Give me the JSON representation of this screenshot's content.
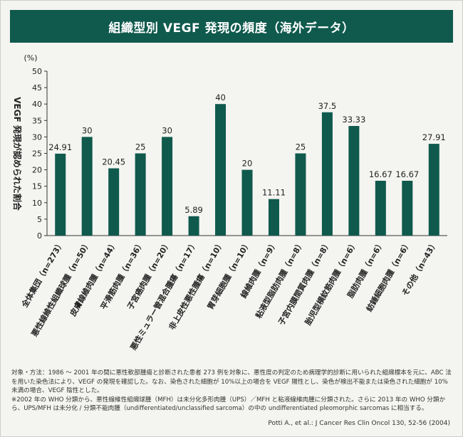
{
  "title": "組織型別 VEGF 発現の頻度（海外データ）",
  "chart_data": {
    "type": "bar",
    "title": "組織型別 VEGF 発現の頻度（海外データ）",
    "ylabel": "VEGF 発現が認められた割合",
    "yunit": "(%)",
    "ylim": [
      0,
      50
    ],
    "ytick_step": 5,
    "grid": false,
    "bar_color": "#0f5a4d",
    "categories": [
      "全体集団（n=273）",
      "悪性線維性組織球腫（n=50）",
      "皮膚線維肉腫（n=44）",
      "平滑筋肉腫（n=36）",
      "子宮癌肉腫（n=20）",
      "悪性ミュラー管混合腫瘍（n=17）",
      "非上皮性悪性腫瘍（n=10）",
      "胃芽細胞腫（n=10）",
      "線維肉腫（n=9）",
      "粘液型脂肪肉腫（n=8）",
      "子宮内膜間質肉腫（n=8）",
      "胎児型横紋筋肉腫（n=6）",
      "脂肪肉腫（n=6）",
      "紡錘細胞肉腫（n=6）",
      "その他（n=43）"
    ],
    "values": [
      24.91,
      30,
      20.45,
      25,
      30,
      5.89,
      40,
      20,
      11.11,
      25,
      37.5,
      33.33,
      16.67,
      16.67,
      27.91
    ],
    "value_labels": [
      "24.91",
      "30",
      "20.45",
      "25",
      "30",
      "5.89",
      "40",
      "20",
      "11.11",
      "25",
      "37.5",
      "33.33",
      "16.67",
      "16.67",
      "27.91"
    ]
  },
  "notes": [
    "対象・方法：1986 ～ 2001 年の間に悪性軟部腫瘍と診断された患者 273 例を対象に、悪性度の判定のため病理学的診断に用いられた組織標本を元に、ABC 法を用いた染色法により、VEGF の発現を確認した。なお、染色された細胞が 10%以上の場合を VEGF 陽性とし、染色が検出不能または染色された細胞が 10%未満の場合、VEGF 陰性とした。",
    "※2002 年の WHO 分類から、悪性線維性組織球腫（MFH）は未分化多形肉腫（UPS）／MFH と粘液線維肉腫に分類された。さらに 2013 年の WHO 分類から、UPS/MFH は未分化 / 分類不能肉腫（undifferentiated/unclassified sarcoma）の中の undifferentiated pleomorphic sarcomas に相当する。"
  ],
  "citation": "Potti A., et al.: J Cancer Res Clin Oncol 130, 52-56 (2004)"
}
